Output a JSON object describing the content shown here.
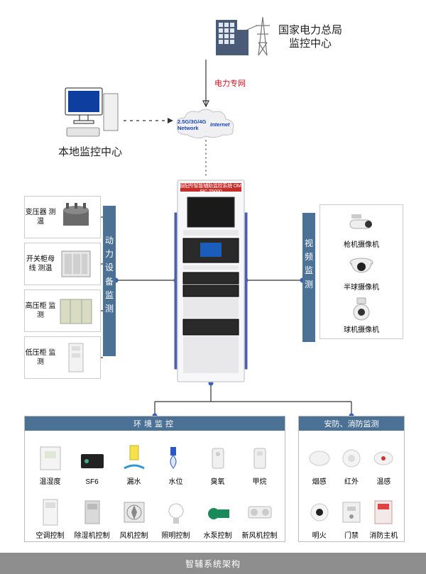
{
  "caption": "智辅系统架构",
  "colors": {
    "background": "#ffffff",
    "line": "#333333",
    "node_dot": "#3a5fb5",
    "group_header_bg": "#4b7195",
    "group_header_fg": "#ffffff",
    "caption_bg": "#8e8e8e",
    "caption_fg": "#ffffff",
    "red": "#dd1122",
    "rack_header": "#c62c28",
    "rack_body": "#f7f7f9",
    "rack_frame": "#cfd2d8"
  },
  "top": {
    "hq_label": "国家电力总局\n监控中心",
    "power_net_label": "电力专网",
    "cloud": {
      "line1": "2.5G/3G/4G",
      "line2": "Network",
      "line3": "Internet"
    },
    "local_label": "本地监控中心"
  },
  "rack": {
    "title": "源配所智能辅助监控系统 OM-IPC T5000"
  },
  "power_equip": {
    "title": "动力设备监测",
    "items": [
      {
        "label": "变压器\n测温"
      },
      {
        "label": "开关柜母线\n测温"
      },
      {
        "label": "高压柜\n监测"
      },
      {
        "label": "低压柜\n监测"
      }
    ]
  },
  "video": {
    "title": "视频监测",
    "items": [
      {
        "label": "枪机摄像机"
      },
      {
        "label": "半球摄像机"
      },
      {
        "label": "球机摄像机"
      }
    ]
  },
  "env": {
    "title": "环境监控",
    "items": [
      {
        "label": "温湿度"
      },
      {
        "label": "SF6"
      },
      {
        "label": "漏水"
      },
      {
        "label": "水位"
      },
      {
        "label": "臭氧"
      },
      {
        "label": "甲烷"
      },
      {
        "label": "空调控制"
      },
      {
        "label": "除湿机控制"
      },
      {
        "label": "风机控制"
      },
      {
        "label": "照明控制"
      },
      {
        "label": "水泵控制"
      },
      {
        "label": "新风机控制"
      }
    ]
  },
  "safety": {
    "title": "安防、消防监测",
    "items": [
      {
        "label": "烟感"
      },
      {
        "label": "红外"
      },
      {
        "label": "温感"
      },
      {
        "label": "明火"
      },
      {
        "label": "门禁"
      },
      {
        "label": "消防主机"
      }
    ]
  },
  "lines": {
    "style": {
      "dash_pattern": "4 5",
      "dot_pattern": "1 5",
      "node_radius": 3.5
    }
  }
}
